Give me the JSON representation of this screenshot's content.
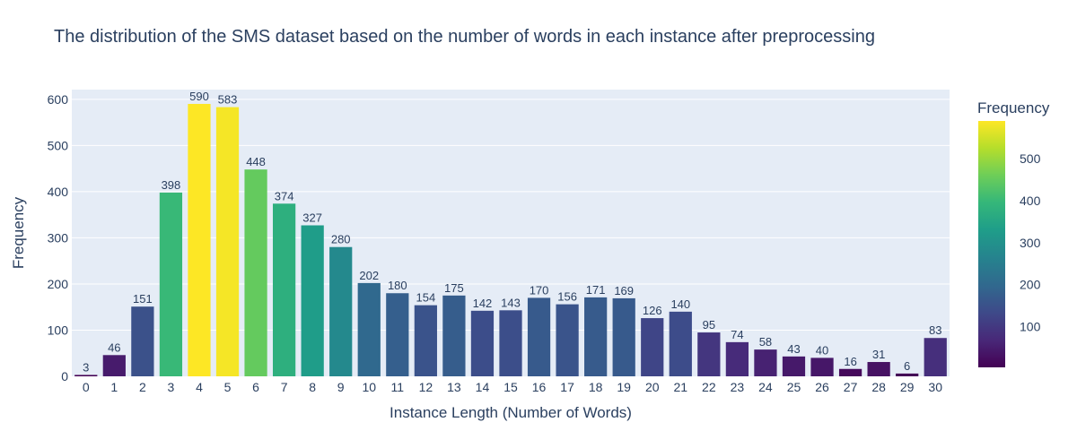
{
  "chart_data": {
    "type": "bar",
    "title": "The distribution of the SMS dataset based on the number of words in each instance after preprocessing",
    "xlabel": "Instance Length (Number of Words)",
    "ylabel": "Frequency",
    "categories": [
      "0",
      "1",
      "2",
      "3",
      "4",
      "5",
      "6",
      "7",
      "8",
      "9",
      "10",
      "11",
      "12",
      "13",
      "14",
      "15",
      "16",
      "17",
      "18",
      "19",
      "20",
      "21",
      "22",
      "23",
      "24",
      "25",
      "26",
      "27",
      "28",
      "29",
      "30"
    ],
    "values": [
      3,
      46,
      151,
      398,
      590,
      583,
      448,
      374,
      327,
      280,
      202,
      180,
      154,
      175,
      142,
      143,
      170,
      156,
      171,
      169,
      126,
      140,
      95,
      74,
      58,
      43,
      40,
      16,
      31,
      6,
      83
    ],
    "y_ticks": [
      0,
      100,
      200,
      300,
      400,
      500,
      600
    ],
    "ylim": [
      0,
      621
    ],
    "grid": true,
    "colorscale": "viridis",
    "colorbar": {
      "title": "Frequency",
      "ticks": [
        100,
        200,
        300,
        400,
        500
      ],
      "range": [
        3,
        590
      ]
    },
    "colors": {
      "plot_background": "#e5ecf6",
      "gridline": "#ffffff",
      "text": "#2a3f5f"
    }
  }
}
